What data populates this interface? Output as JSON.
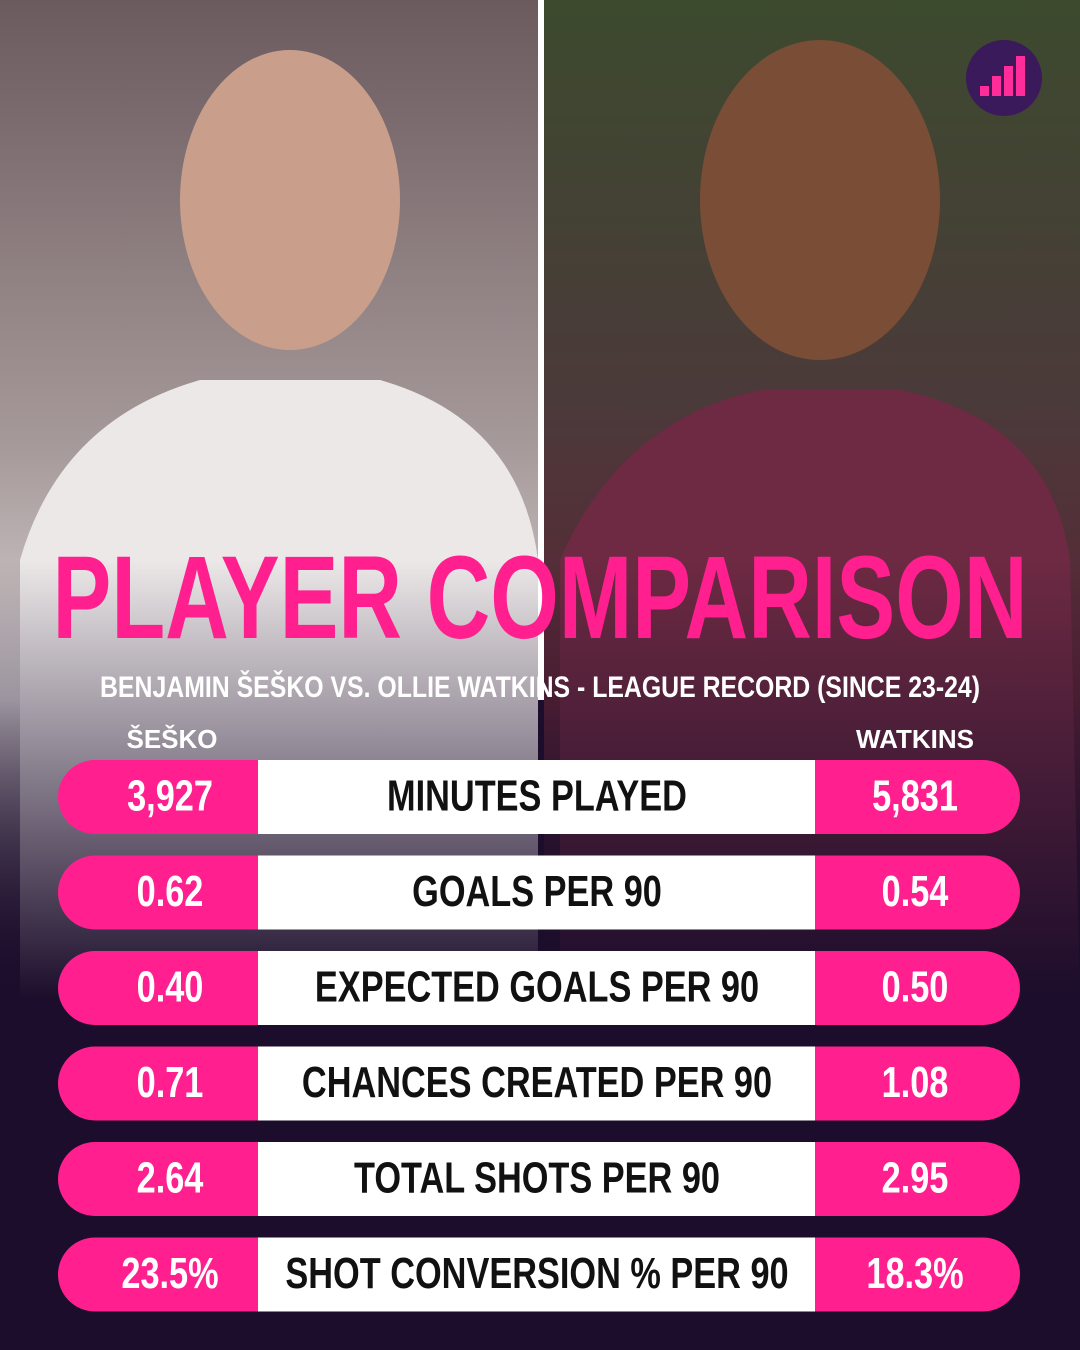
{
  "header": {
    "title": "PLAYER COMPARISON",
    "subtitle": "BENJAMIN ŠEŠKO VS. OLLIE WATKINS - LEAGUE RECORD (SINCE 23-24)"
  },
  "players": {
    "left": "ŠEŠKO",
    "right": "WATKINS"
  },
  "table": {
    "rows": [
      {
        "label": "MINUTES PLAYED",
        "left": "3,927",
        "right": "5,831"
      },
      {
        "label": "GOALS PER 90",
        "left": "0.62",
        "right": "0.54"
      },
      {
        "label": "EXPECTED GOALS PER 90",
        "left": "0.40",
        "right": "0.50"
      },
      {
        "label": "CHANCES CREATED PER 90",
        "left": "0.71",
        "right": "1.08"
      },
      {
        "label": "TOTAL SHOTS PER 90",
        "left": "2.64",
        "right": "2.95"
      },
      {
        "label": "SHOT CONVERSION % PER 90",
        "left": "23.5%",
        "right": "18.3%"
      }
    ]
  }
}
